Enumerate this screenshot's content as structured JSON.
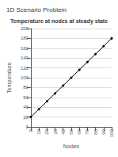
{
  "chart_data": {
    "type": "line",
    "title": "Temperature at nodes at steady state",
    "annotation": "1D Scenario Problem",
    "xlabel": "Nodes",
    "ylabel": "Temperature",
    "x": [
      0,
      10,
      20,
      30,
      40,
      50,
      60,
      70,
      80,
      90,
      100
    ],
    "values": [
      20,
      36,
      52,
      68,
      84,
      100,
      116,
      132,
      148,
      164,
      180
    ],
    "color": "#000000",
    "marker": "o",
    "xlim": [
      0,
      100
    ],
    "ylim": [
      0,
      200
    ],
    "xticks": [
      0,
      10,
      20,
      30,
      40,
      50,
      60,
      70,
      80,
      90,
      100
    ],
    "yticks": [
      0,
      20,
      40,
      60,
      80,
      100,
      120,
      140,
      160,
      180,
      200
    ],
    "grid": "y"
  }
}
